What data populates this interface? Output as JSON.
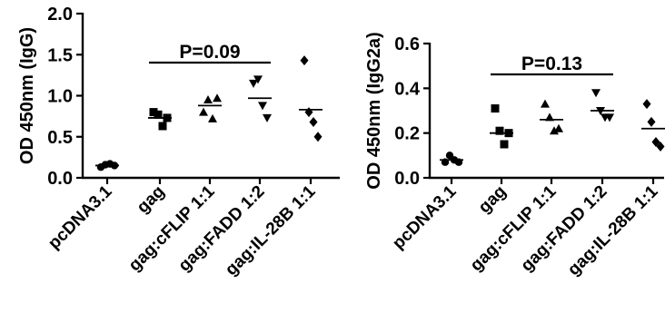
{
  "chart_data": [
    {
      "type": "scatter",
      "ylabel": "OD 450nm (IgG)",
      "ylim": [
        0,
        2.0
      ],
      "yticks": [
        "0.0",
        "0.5",
        "1.0",
        "1.5",
        "2.0"
      ],
      "ytick_values": [
        0,
        0.5,
        1.0,
        1.5,
        2.0
      ],
      "categories": [
        "pcDNA3.1",
        "gag",
        "gag:cFLIP 1:1",
        "gag:FADD 1:2",
        "gag:IL-28B 1:1"
      ],
      "series": [
        {
          "marker": "circle",
          "values": [
            0.13,
            0.16,
            0.17,
            0.15
          ]
        },
        {
          "marker": "square",
          "values": [
            0.8,
            0.77,
            0.63,
            0.73
          ]
        },
        {
          "marker": "triangle-up",
          "values": [
            0.8,
            0.95,
            0.72,
            0.97
          ]
        },
        {
          "marker": "triangle-down",
          "values": [
            1.15,
            1.2,
            0.88,
            0.73
          ]
        },
        {
          "marker": "diamond",
          "values": [
            1.43,
            0.8,
            0.68,
            0.5
          ]
        }
      ],
      "means": [
        0.15,
        0.73,
        0.88,
        0.97,
        0.83
      ],
      "annotation": {
        "text": "P=0.09",
        "from_category": 1,
        "to_category": 3
      }
    },
    {
      "type": "scatter",
      "ylabel": "OD 450nm (IgG2a)",
      "ylim": [
        0,
        0.6
      ],
      "yticks": [
        "0.0",
        "0.2",
        "0.4",
        "0.6"
      ],
      "ytick_values": [
        0,
        0.2,
        0.4,
        0.6
      ],
      "categories": [
        "pcDNA3.1",
        "gag",
        "gag:cFLIP 1:1",
        "gag:FADD 1:2",
        "gag:IL-28B 1:1"
      ],
      "series": [
        {
          "marker": "circle",
          "values": [
            0.07,
            0.1,
            0.08,
            0.07
          ]
        },
        {
          "marker": "square",
          "values": [
            0.31,
            0.21,
            0.15,
            0.2
          ]
        },
        {
          "marker": "triangle-up",
          "values": [
            0.33,
            0.27,
            0.21,
            0.22
          ]
        },
        {
          "marker": "triangle-down",
          "values": [
            0.38,
            0.3,
            0.27,
            0.27
          ]
        },
        {
          "marker": "diamond",
          "values": [
            0.33,
            0.25,
            0.16,
            0.14
          ]
        }
      ],
      "means": [
        0.08,
        0.2,
        0.26,
        0.3,
        0.22
      ],
      "annotation": {
        "text": "P=0.13",
        "from_category": 1,
        "to_category": 3
      }
    }
  ]
}
